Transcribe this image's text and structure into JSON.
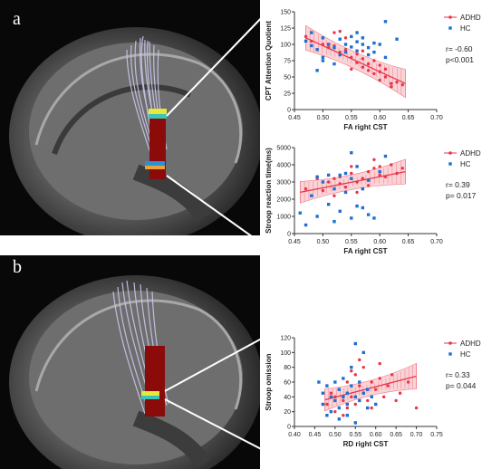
{
  "panels": {
    "a": {
      "letter": "a"
    },
    "b": {
      "letter": "b"
    }
  },
  "colors": {
    "adhd": "#e8364a",
    "hc": "#1f6fd1",
    "band": "#e8364a"
  },
  "chart_data": [
    {
      "type": "scatter",
      "id": "cpt",
      "xlabel": "FA right CST",
      "ylabel": "CPT Attention Quotient",
      "xlim": [
        0.45,
        0.7
      ],
      "ylim": [
        0,
        150
      ],
      "xticks": [
        "0.45",
        "0.50",
        "0.55",
        "0.60",
        "0.65",
        "0.70"
      ],
      "yticks": [
        "0",
        "25",
        "50",
        "75",
        "100",
        "125",
        "150"
      ],
      "legend": [
        "ADHD",
        "HC"
      ],
      "stats": [
        "r= -0.60",
        "p<0.001"
      ],
      "fit": {
        "x": [
          0.47,
          0.645
        ],
        "y": [
          110,
          40
        ]
      },
      "series": [
        {
          "name": "ADHD",
          "points": [
            [
              0.47,
              112
            ],
            [
              0.48,
              105
            ],
            [
              0.5,
              100
            ],
            [
              0.51,
              95
            ],
            [
              0.52,
              98
            ],
            [
              0.53,
              88
            ],
            [
              0.54,
              92
            ],
            [
              0.55,
              80
            ],
            [
              0.56,
              85
            ],
            [
              0.56,
              72
            ],
            [
              0.57,
              78
            ],
            [
              0.57,
              65
            ],
            [
              0.58,
              70
            ],
            [
              0.58,
              60
            ],
            [
              0.59,
              55
            ],
            [
              0.59,
              75
            ],
            [
              0.6,
              58
            ],
            [
              0.6,
              45
            ],
            [
              0.61,
              50
            ],
            [
              0.62,
              40
            ],
            [
              0.62,
              35
            ],
            [
              0.63,
              42
            ],
            [
              0.64,
              38
            ],
            [
              0.55,
              62
            ],
            [
              0.54,
              110
            ],
            [
              0.53,
              120
            ],
            [
              0.57,
              90
            ],
            [
              0.6,
              68
            ],
            [
              0.61,
              62
            ],
            [
              0.52,
              118
            ]
          ]
        },
        {
          "name": "HC",
          "points": [
            [
              0.47,
              105
            ],
            [
              0.48,
              98
            ],
            [
              0.48,
              118
            ],
            [
              0.49,
              60
            ],
            [
              0.5,
              110
            ],
            [
              0.5,
              80
            ],
            [
              0.51,
              100
            ],
            [
              0.52,
              95
            ],
            [
              0.52,
              70
            ],
            [
              0.53,
              108
            ],
            [
              0.54,
              100
            ],
            [
              0.54,
              88
            ],
            [
              0.55,
              112
            ],
            [
              0.55,
              96
            ],
            [
              0.56,
              104
            ],
            [
              0.56,
              90
            ],
            [
              0.57,
              100
            ],
            [
              0.57,
              110
            ],
            [
              0.58,
              84
            ],
            [
              0.58,
              95
            ],
            [
              0.59,
              88
            ],
            [
              0.6,
              100
            ],
            [
              0.61,
              80
            ],
            [
              0.61,
              135
            ],
            [
              0.63,
              108
            ],
            [
              0.5,
              75
            ],
            [
              0.53,
              84
            ],
            [
              0.56,
              118
            ],
            [
              0.59,
              102
            ],
            [
              0.49,
              92
            ]
          ]
        }
      ]
    },
    {
      "type": "scatter",
      "id": "stroop-rt",
      "xlabel": "FA right CST",
      "ylabel": "Stroop reaction time(ms)",
      "xlim": [
        0.45,
        0.7
      ],
      "ylim": [
        0,
        5000
      ],
      "xticks": [
        "0.45",
        "0.50",
        "0.55",
        "0.60",
        "0.65",
        "0.70"
      ],
      "yticks": [
        "0",
        "1000",
        "2000",
        "3000",
        "4000",
        "5000"
      ],
      "legend": [
        "ADHD",
        "HC"
      ],
      "stats": [
        "r= 0.39",
        "p= 0.017"
      ],
      "fit": {
        "x": [
          0.46,
          0.645
        ],
        "y": [
          2400,
          3600
        ]
      },
      "series": [
        {
          "name": "ADHD",
          "points": [
            [
              0.47,
              2600
            ],
            [
              0.49,
              3200
            ],
            [
              0.5,
              2500
            ],
            [
              0.51,
              3000
            ],
            [
              0.52,
              2200
            ],
            [
              0.53,
              3300
            ],
            [
              0.54,
              2700
            ],
            [
              0.55,
              3500
            ],
            [
              0.56,
              3000
            ],
            [
              0.56,
              2400
            ],
            [
              0.57,
              3200
            ],
            [
              0.58,
              3600
            ],
            [
              0.58,
              2800
            ],
            [
              0.59,
              3800
            ],
            [
              0.6,
              3400
            ],
            [
              0.61,
              3300
            ],
            [
              0.62,
              4000
            ],
            [
              0.63,
              3500
            ],
            [
              0.64,
              3800
            ],
            [
              0.55,
              3900
            ],
            [
              0.52,
              3200
            ],
            [
              0.57,
              2600
            ],
            [
              0.6,
              3900
            ],
            [
              0.53,
              2900
            ],
            [
              0.59,
              4300
            ]
          ]
        },
        {
          "name": "HC",
          "points": [
            [
              0.46,
              1200
            ],
            [
              0.47,
              500
            ],
            [
              0.48,
              2200
            ],
            [
              0.49,
              3300
            ],
            [
              0.49,
              1000
            ],
            [
              0.5,
              3000
            ],
            [
              0.51,
              3400
            ],
            [
              0.51,
              1700
            ],
            [
              0.52,
              700
            ],
            [
              0.52,
              2600
            ],
            [
              0.53,
              1300
            ],
            [
              0.54,
              2400
            ],
            [
              0.54,
              3500
            ],
            [
              0.55,
              3200
            ],
            [
              0.55,
              4700
            ],
            [
              0.56,
              1600
            ],
            [
              0.56,
              3900
            ],
            [
              0.57,
              2600
            ],
            [
              0.57,
              1500
            ],
            [
              0.58,
              3100
            ],
            [
              0.58,
              1100
            ],
            [
              0.59,
              900
            ],
            [
              0.6,
              3600
            ],
            [
              0.61,
              4500
            ],
            [
              0.53,
              3400
            ],
            [
              0.55,
              900
            ]
          ]
        }
      ]
    },
    {
      "type": "scatter",
      "id": "stroop-omission",
      "xlabel": "RD right CST",
      "ylabel": "Stroop omission",
      "xlim": [
        0.4,
        0.75
      ],
      "ylim": [
        0,
        120
      ],
      "xticks": [
        "0.40",
        "0.45",
        "0.50",
        "0.55",
        "0.60",
        "0.65",
        "0.70",
        "0.75"
      ],
      "yticks": [
        "0",
        "20",
        "40",
        "60",
        "80",
        "100",
        "120"
      ],
      "legend": [
        "ADHD",
        "HC"
      ],
      "stats": [
        "r= 0.33",
        "p= 0.044"
      ],
      "fit": {
        "x": [
          0.475,
          0.7
        ],
        "y": [
          36,
          68
        ]
      },
      "series": [
        {
          "name": "ADHD",
          "points": [
            [
              0.48,
              30
            ],
            [
              0.49,
              45
            ],
            [
              0.5,
              20
            ],
            [
              0.51,
              50
            ],
            [
              0.52,
              35
            ],
            [
              0.53,
              60
            ],
            [
              0.53,
              25
            ],
            [
              0.54,
              40
            ],
            [
              0.55,
              70
            ],
            [
              0.55,
              30
            ],
            [
              0.56,
              55
            ],
            [
              0.57,
              45
            ],
            [
              0.57,
              80
            ],
            [
              0.58,
              35
            ],
            [
              0.59,
              60
            ],
            [
              0.6,
              50
            ],
            [
              0.61,
              85
            ],
            [
              0.62,
              40
            ],
            [
              0.63,
              55
            ],
            [
              0.64,
              70
            ],
            [
              0.65,
              35
            ],
            [
              0.66,
              45
            ],
            [
              0.68,
              60
            ],
            [
              0.7,
              25
            ],
            [
              0.52,
              15
            ],
            [
              0.56,
              90
            ],
            [
              0.59,
              25
            ],
            [
              0.61,
              65
            ],
            [
              0.5,
              40
            ],
            [
              0.54,
              75
            ]
          ]
        },
        {
          "name": "HC",
          "points": [
            [
              0.46,
              60
            ],
            [
              0.47,
              45
            ],
            [
              0.47,
              30
            ],
            [
              0.48,
              55
            ],
            [
              0.49,
              20
            ],
            [
              0.49,
              40
            ],
            [
              0.5,
              35
            ],
            [
              0.5,
              60
            ],
            [
              0.51,
              25
            ],
            [
              0.51,
              50
            ],
            [
              0.52,
              40
            ],
            [
              0.52,
              65
            ],
            [
              0.53,
              30
            ],
            [
              0.53,
              45
            ],
            [
              0.54,
              55
            ],
            [
              0.54,
              80
            ],
            [
              0.55,
              40
            ],
            [
              0.55,
              112
            ],
            [
              0.56,
              60
            ],
            [
              0.56,
              35
            ],
            [
              0.57,
              45
            ],
            [
              0.58,
              25
            ],
            [
              0.58,
              50
            ],
            [
              0.59,
              40
            ],
            [
              0.6,
              30
            ],
            [
              0.48,
              15
            ],
            [
              0.51,
              10
            ],
            [
              0.55,
              5
            ],
            [
              0.57,
              100
            ],
            [
              0.53,
              15
            ]
          ]
        }
      ]
    }
  ]
}
